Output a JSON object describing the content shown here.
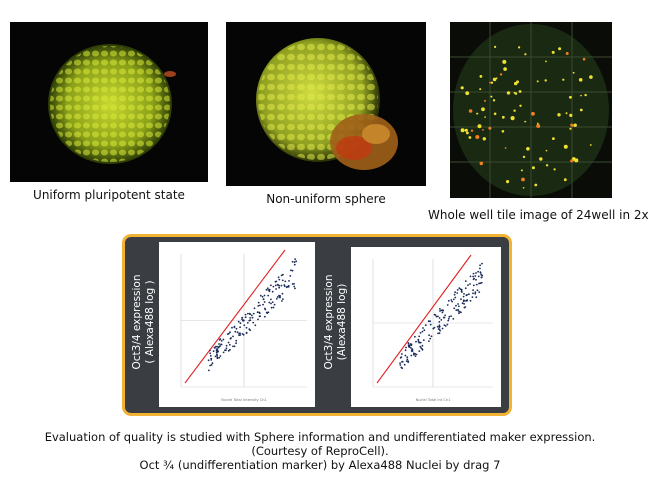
{
  "images": [
    {
      "caption": "Uniform pluripotent state"
    },
    {
      "caption": "Non-uniform sphere"
    },
    {
      "caption": "Whole well tile image of 24well in 2x"
    }
  ],
  "plots": [
    {
      "ylabel_line1": "Oct3/4 expression",
      "ylabel_line2": "( Alexa488 log )",
      "xlabel": "Nuclei Total Intensity Ch1"
    },
    {
      "ylabel_line1": "Oct3/4 expression",
      "ylabel_line2": "(Alexa488 log)",
      "xlabel": "Nuclei Total Int Ch1"
    }
  ],
  "colors": {
    "frame_border": "#f2b233",
    "frame_bg": "#3a3d42",
    "fit_line": "#e02020",
    "points": "#1a2a5a"
  },
  "description": {
    "line1": "Evaluation of quality is studied with Sphere information and undifferentiated maker expression.",
    "line2": "(Courtesy of ReproCell).",
    "line3": "Oct ¾ (undifferentiation marker) by Alexa488 Nuclei by drag 7"
  }
}
